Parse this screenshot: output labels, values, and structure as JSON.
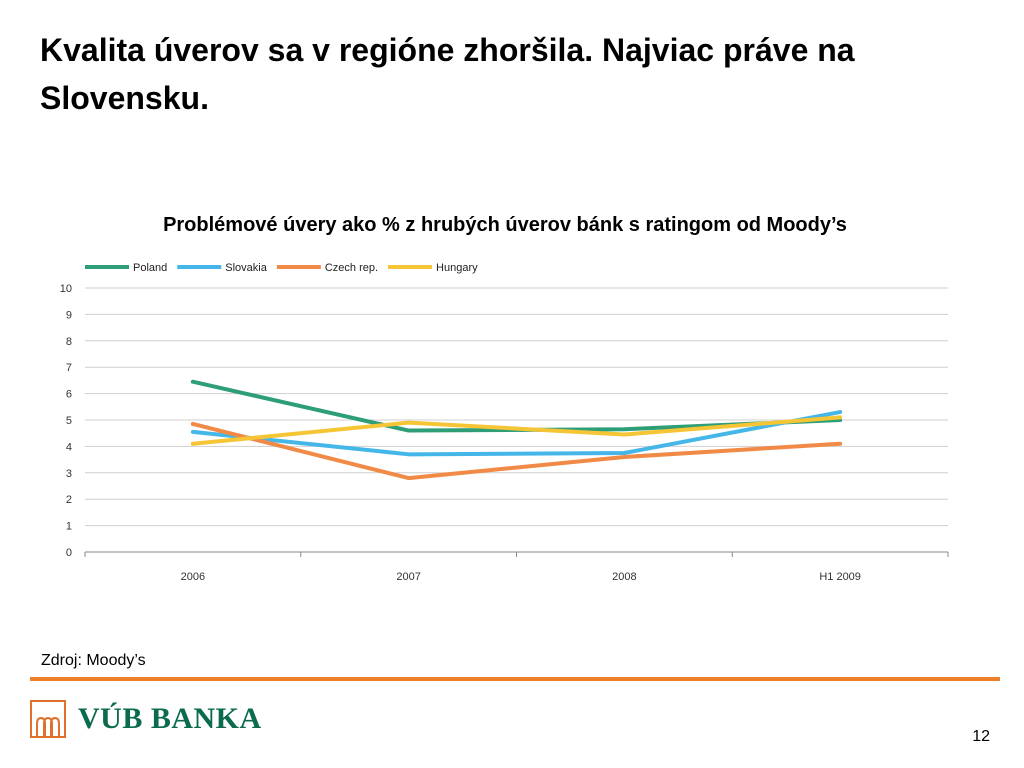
{
  "slide": {
    "title": "Kvalita úverov sa v regióne zhoršila. Najviac práve na Slovensku.",
    "source": "Zdroj: Moody’s",
    "page_number": "12",
    "logo_text": "VÚB BANKA"
  },
  "colors": {
    "accent_rule": "#f07f2c",
    "logo_green": "#0b6b4e"
  },
  "chart_data": {
    "type": "line",
    "title": "Problémové úvery ako % z hrubých úverov bánk s ratingom od Moody’s",
    "categories": [
      "2006",
      "2007",
      "2008",
      "H1 2009"
    ],
    "ylim": [
      0,
      10
    ],
    "yticks": [
      "0",
      "1",
      "2",
      "3",
      "4",
      "5",
      "6",
      "7",
      "8",
      "9",
      "10"
    ],
    "grid": true,
    "legend_position": "top-left",
    "series": [
      {
        "name": "Poland",
        "color": "#2e9e77",
        "values": [
          6.45,
          4.6,
          4.65,
          5.0
        ]
      },
      {
        "name": "Slovakia",
        "color": "#45b6e8",
        "values": [
          4.55,
          3.7,
          3.75,
          5.3
        ]
      },
      {
        "name": "Czech rep.",
        "color": "#f08a46",
        "values": [
          4.85,
          2.8,
          3.6,
          4.1
        ]
      },
      {
        "name": "Hungary",
        "color": "#f5c535",
        "values": [
          4.1,
          4.9,
          4.45,
          5.1
        ]
      }
    ]
  }
}
